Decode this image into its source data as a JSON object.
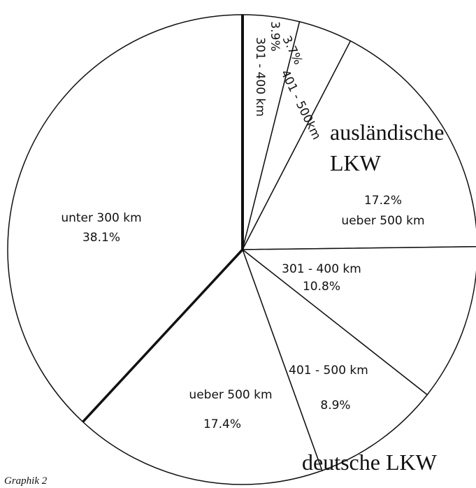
{
  "chart_data": {
    "type": "pie",
    "categories": [
      "301 - 400 km",
      "401 - 500km",
      "ueber 500 km",
      "301 - 400 km",
      "401 - 500 km",
      "ueber 500 km",
      "unter 300 km"
    ],
    "values": [
      3.9,
      3.7,
      17.2,
      10.8,
      8.9,
      17.4,
      38.1
    ],
    "value_labels": [
      "3.9%",
      "3.7%",
      "17.2%",
      "10.8%",
      "8.9%",
      "17.4%",
      "38.1%"
    ],
    "color": "#ffffff",
    "annotations": [
      "ausländische",
      "LKW",
      "deutsche LKW"
    ],
    "caption": "Graphik 2"
  }
}
